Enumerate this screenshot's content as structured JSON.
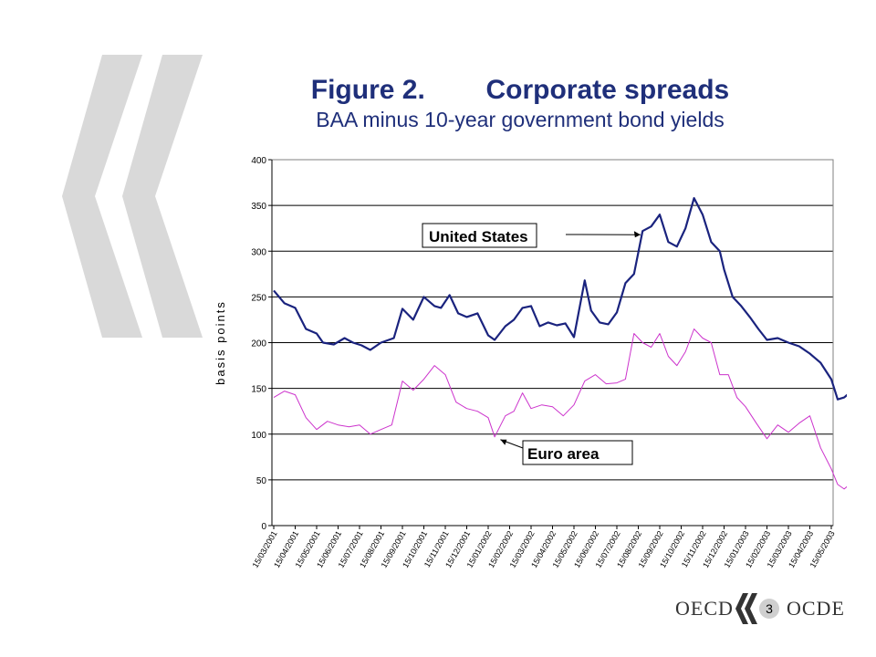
{
  "slide": {
    "title_number": "Figure 2.",
    "title_text": "Corporate spreads",
    "subtitle": "BAA minus 10-year government bond yields",
    "page_number": "3",
    "footer_left": "OECD",
    "footer_right": "OCDE"
  },
  "chart_data": {
    "type": "line",
    "title": "",
    "ylabel": "basis points",
    "xlabel": "",
    "ylim": [
      0,
      400
    ],
    "yticks": [
      0,
      50,
      100,
      150,
      200,
      250,
      300,
      350,
      400
    ],
    "grid": true,
    "categories": [
      "15/03/2001",
      "15/04/2001",
      "15/05/2001",
      "15/06/2001",
      "15/07/2001",
      "15/08/2001",
      "15/09/2001",
      "15/10/2001",
      "15/11/2001",
      "15/12/2001",
      "15/01/2002",
      "15/02/2002",
      "15/03/2002",
      "15/04/2002",
      "15/05/2002",
      "15/06/2002",
      "15/07/2002",
      "15/08/2002",
      "15/09/2002",
      "15/10/2002",
      "15/11/2002",
      "15/12/2002",
      "15/01/2003",
      "15/02/2003",
      "15/03/2003",
      "15/04/2003",
      "15/05/2003"
    ],
    "series": [
      {
        "name": "United States",
        "color": "#1a237e",
        "points": [
          [
            0,
            257
          ],
          [
            0.5,
            243
          ],
          [
            1,
            238
          ],
          [
            1.5,
            215
          ],
          [
            2,
            210
          ],
          [
            2.3,
            200
          ],
          [
            2.8,
            198
          ],
          [
            3.3,
            205
          ],
          [
            3.7,
            200
          ],
          [
            4.1,
            197
          ],
          [
            4.5,
            192
          ],
          [
            5,
            200
          ],
          [
            5.6,
            205
          ],
          [
            6,
            237
          ],
          [
            6.5,
            225
          ],
          [
            7,
            250
          ],
          [
            7.5,
            240
          ],
          [
            7.8,
            238
          ],
          [
            8.2,
            252
          ],
          [
            8.6,
            232
          ],
          [
            9,
            228
          ],
          [
            9.5,
            232
          ],
          [
            10,
            208
          ],
          [
            10.3,
            203
          ],
          [
            10.8,
            218
          ],
          [
            11.2,
            225
          ],
          [
            11.6,
            238
          ],
          [
            12,
            240
          ],
          [
            12.4,
            218
          ],
          [
            12.8,
            222
          ],
          [
            13.2,
            219
          ],
          [
            13.6,
            221
          ],
          [
            14,
            206
          ],
          [
            14.5,
            268
          ],
          [
            14.8,
            235
          ],
          [
            15.2,
            222
          ],
          [
            15.6,
            220
          ],
          [
            16,
            233
          ],
          [
            16.4,
            265
          ],
          [
            16.8,
            275
          ],
          [
            17.2,
            322
          ],
          [
            17.6,
            327
          ],
          [
            18,
            340
          ],
          [
            18.4,
            310
          ],
          [
            18.8,
            305
          ],
          [
            19.2,
            325
          ],
          [
            19.6,
            358
          ],
          [
            20,
            340
          ],
          [
            20.4,
            310
          ],
          [
            20.8,
            300
          ],
          [
            21,
            280
          ],
          [
            21.4,
            250
          ],
          [
            21.8,
            240
          ],
          [
            22.2,
            228
          ],
          [
            22.6,
            215
          ],
          [
            23,
            203
          ],
          [
            23.5,
            205
          ],
          [
            24,
            200
          ],
          [
            24.5,
            196
          ],
          [
            25,
            188
          ],
          [
            25.5,
            178
          ],
          [
            26,
            160
          ],
          [
            26.3,
            138
          ],
          [
            26.6,
            140
          ],
          [
            26.9,
            146
          ]
        ]
      },
      {
        "name": "Euro area",
        "color": "#cc33cc",
        "points": [
          [
            0,
            140
          ],
          [
            0.5,
            147
          ],
          [
            1,
            143
          ],
          [
            1.5,
            118
          ],
          [
            2,
            105
          ],
          [
            2.5,
            114
          ],
          [
            3,
            110
          ],
          [
            3.5,
            108
          ],
          [
            4,
            110
          ],
          [
            4.5,
            100
          ],
          [
            5,
            105
          ],
          [
            5.5,
            110
          ],
          [
            6,
            158
          ],
          [
            6.5,
            148
          ],
          [
            7,
            160
          ],
          [
            7.5,
            175
          ],
          [
            8,
            165
          ],
          [
            8.5,
            135
          ],
          [
            9,
            128
          ],
          [
            9.5,
            125
          ],
          [
            10,
            118
          ],
          [
            10.3,
            97
          ],
          [
            10.8,
            120
          ],
          [
            11.2,
            125
          ],
          [
            11.6,
            145
          ],
          [
            12,
            128
          ],
          [
            12.5,
            132
          ],
          [
            13,
            130
          ],
          [
            13.5,
            120
          ],
          [
            14,
            132
          ],
          [
            14.5,
            158
          ],
          [
            15,
            165
          ],
          [
            15.5,
            155
          ],
          [
            16,
            156
          ],
          [
            16.4,
            160
          ],
          [
            16.8,
            210
          ],
          [
            17.2,
            200
          ],
          [
            17.6,
            195
          ],
          [
            18,
            210
          ],
          [
            18.4,
            185
          ],
          [
            18.8,
            175
          ],
          [
            19.2,
            190
          ],
          [
            19.6,
            215
          ],
          [
            20,
            205
          ],
          [
            20.4,
            200
          ],
          [
            20.8,
            165
          ],
          [
            21.2,
            165
          ],
          [
            21.6,
            140
          ],
          [
            22,
            130
          ],
          [
            22.5,
            112
          ],
          [
            23,
            95
          ],
          [
            23.5,
            110
          ],
          [
            24,
            102
          ],
          [
            24.5,
            112
          ],
          [
            25,
            120
          ],
          [
            25.5,
            85
          ],
          [
            26,
            62
          ],
          [
            26.3,
            45
          ],
          [
            26.6,
            40
          ],
          [
            26.9,
            46
          ]
        ]
      }
    ],
    "annotations": [
      {
        "text": "United States",
        "series": "United States"
      },
      {
        "text": "Euro area",
        "series": "Euro area"
      }
    ]
  }
}
